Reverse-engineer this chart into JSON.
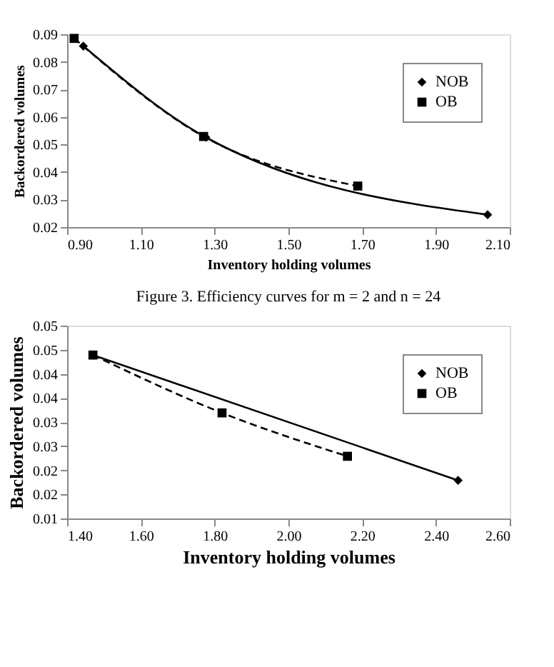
{
  "chart_data": [
    {
      "type": "line",
      "xlabel": "Inventory holding volumes",
      "ylabel": "Backordered volumes",
      "xlim": [
        0.9,
        2.1
      ],
      "xticks": [
        {
          "value": 0.9,
          "label": "0.90"
        },
        {
          "value": 1.1,
          "label": "1.10"
        },
        {
          "value": 1.3,
          "label": "1.30"
        },
        {
          "value": 1.5,
          "label": "1.50"
        },
        {
          "value": 1.7,
          "label": "1.70"
        },
        {
          "value": 1.9,
          "label": "1.90"
        },
        {
          "value": 2.1,
          "label": "2.10"
        }
      ],
      "ylim": [
        0.02,
        0.09
      ],
      "yticks": [
        0.02,
        0.03,
        0.04,
        0.05,
        0.06,
        0.07,
        0.08,
        0.09
      ],
      "legend": "top right",
      "grid": false,
      "series": [
        {
          "name": "NOB",
          "color": "#000000",
          "marker": "diamond",
          "line_style": "solid",
          "x": [
            0.944,
            1.276,
            2.04
          ],
          "values": [
            0.0857,
            0.0526,
            0.0245
          ]
        },
        {
          "name": "OB",
          "color": "#000000",
          "marker": "square",
          "line_style": "dashed",
          "x": [
            0.919,
            1.27,
            1.688
          ],
          "values": [
            0.0885,
            0.0529,
            0.0349
          ]
        }
      ],
      "annotations": [
        "Figure 3. Efficiency curves for m = 2 and n = 24"
      ]
    },
    {
      "type": "line",
      "xlabel": "Inventory holding volumes",
      "ylabel": "Backordered volumes",
      "xlim": [
        1.4,
        2.6
      ],
      "xticks": [
        {
          "value": 1.4,
          "label": "1.40"
        },
        {
          "value": 1.6,
          "label": "1.60"
        },
        {
          "value": 1.8,
          "label": "1.80"
        },
        {
          "value": 2.0,
          "label": "2.00"
        },
        {
          "value": 2.2,
          "label": "2.20"
        },
        {
          "value": 2.4,
          "label": "2.40"
        },
        {
          "value": 2.6,
          "label": "2.60"
        }
      ],
      "ylim": [
        0.01,
        0.05
      ],
      "yticks": [
        0.01,
        {
          "value": 0.015,
          "label": "0.02"
        },
        0.02,
        {
          "value": 0.025,
          "label": "0.03"
        },
        0.03,
        {
          "value": 0.035,
          "label": "0.04"
        },
        0.04,
        {
          "value": 0.045,
          "label": "0.05"
        },
        0.05
      ],
      "legend": "top right",
      "grid": false,
      "series": [
        {
          "name": "NOB",
          "color": "#000000",
          "marker": "diamond",
          "line_style": "solid",
          "x": [
            1.47,
            2.46
          ],
          "values": [
            0.0439,
            0.0179
          ]
        },
        {
          "name": "OB",
          "color": "#000000",
          "marker": "square",
          "line_style": "dashed",
          "x": [
            1.47,
            1.82,
            2.16
          ],
          "values": [
            0.0439,
            0.0319,
            0.0229
          ]
        }
      ]
    }
  ]
}
